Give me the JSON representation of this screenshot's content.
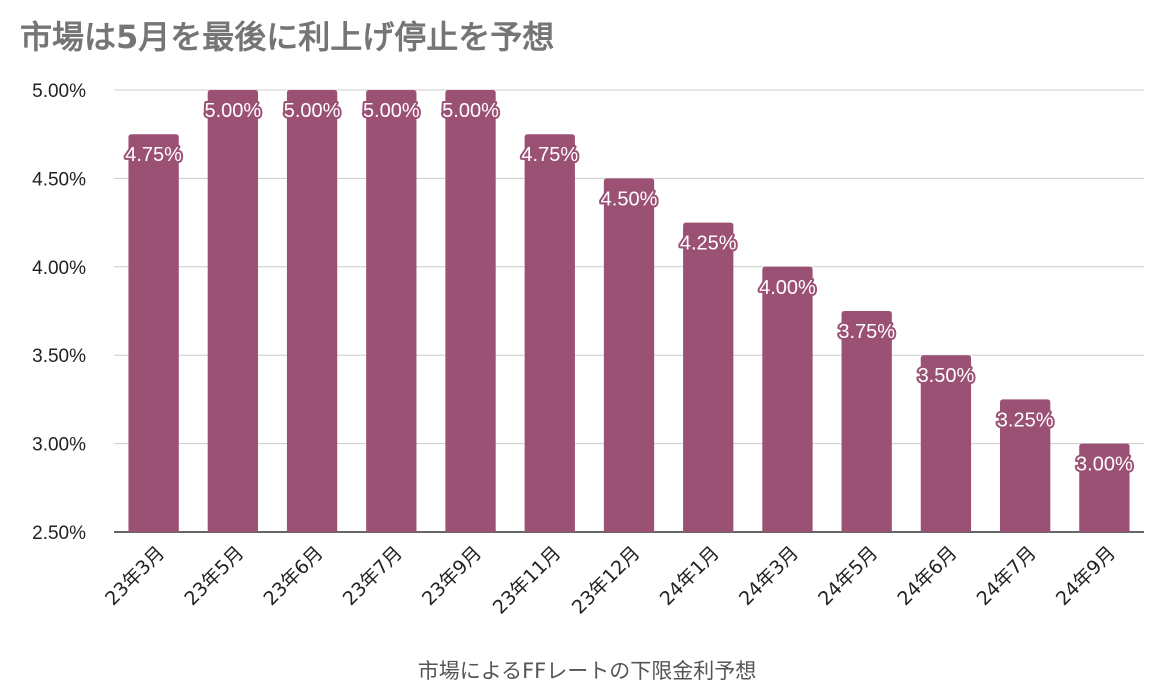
{
  "chart_data": {
    "type": "bar",
    "title": "市場は5月を最後に利上げ停止を予想",
    "xlabel": "市場によるFFレートの下限金利予想",
    "ylabel": "",
    "categories": [
      "23年3月",
      "23年5月",
      "23年6月",
      "23年7月",
      "23年9月",
      "23年11月",
      "23年12月",
      "24年1月",
      "24年3月",
      "24年5月",
      "24年6月",
      "24年7月",
      "24年9月"
    ],
    "values": [
      4.75,
      5.0,
      5.0,
      5.0,
      5.0,
      4.75,
      4.5,
      4.25,
      4.0,
      3.75,
      3.5,
      3.25,
      3.0
    ],
    "data_labels": [
      "4.75%",
      "5.00%",
      "5.00%",
      "5.00%",
      "5.00%",
      "4.75%",
      "4.50%",
      "4.25%",
      "4.00%",
      "3.75%",
      "3.50%",
      "3.25%",
      "3.00%"
    ],
    "ylim": [
      2.5,
      5.0
    ],
    "yticks": [
      2.5,
      3.0,
      3.5,
      4.0,
      4.5,
      5.0
    ],
    "ytick_labels": [
      "2.50%",
      "3.00%",
      "3.50%",
      "4.00%",
      "4.50%",
      "5.00%"
    ],
    "grid": true,
    "legend": "none",
    "colors": {
      "bar": "#9b5174",
      "grid": "#cccccc",
      "title": "#757575"
    }
  }
}
